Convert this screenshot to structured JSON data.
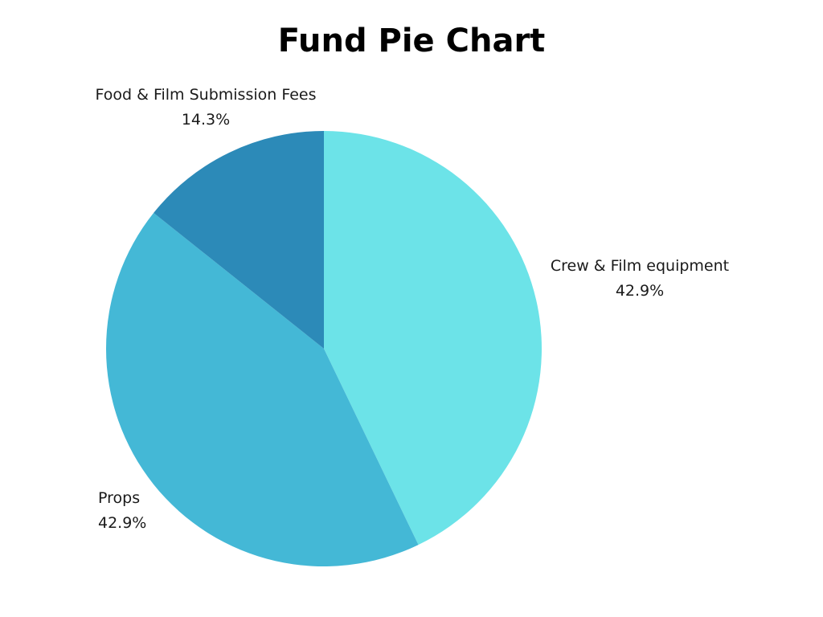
{
  "chart_data": {
    "type": "pie",
    "title": "Fund Pie Chart",
    "slices": [
      {
        "label": "Crew & Film equipment",
        "value": 42.9,
        "percent_label": "42.9%",
        "color": "#6ce3e8"
      },
      {
        "label": "Props",
        "value": 42.9,
        "percent_label": "42.9%",
        "color": "#44b8d6"
      },
      {
        "label": "Food & Film Submission Fees",
        "value": 14.3,
        "percent_label": "14.3%",
        "color": "#2c8ab8"
      }
    ],
    "start_angle": "12 o'clock",
    "direction": "clockwise",
    "legend": "none"
  }
}
